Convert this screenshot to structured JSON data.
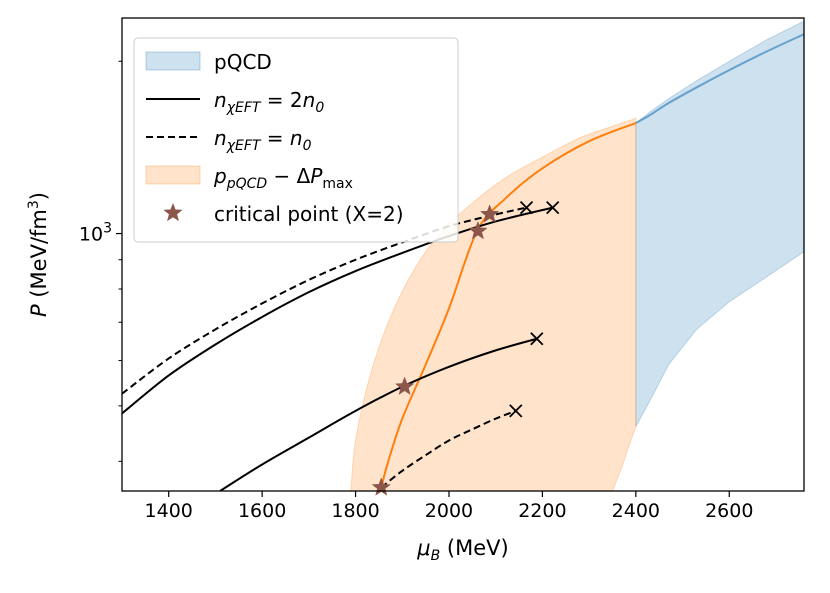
{
  "chart_data": {
    "type": "line",
    "xlabel": "μ_B (MeV)",
    "ylabel": "P (MeV/fm³)",
    "xscale": "linear",
    "yscale": "log",
    "xlim": [
      1300,
      2760
    ],
    "ylim": [
      355,
      2380
    ],
    "x_ticks": [
      1400,
      1600,
      1800,
      2000,
      2200,
      2400,
      2600
    ],
    "y_ticks_major": [
      {
        "value": 1000,
        "label_base": "10",
        "label_exp": "3"
      }
    ],
    "legend": {
      "placement": "top-left",
      "entries": [
        {
          "key": "pqcd",
          "label": "pQCD",
          "style": "band",
          "color": "#1f77b4"
        },
        {
          "key": "n2",
          "label_math": "n",
          "label_sub": "χEFT",
          "label_rest": " = 2",
          "label_math2": "n",
          "label_sub2": "0",
          "style": "solid",
          "color": "#000000"
        },
        {
          "key": "n1",
          "label_math": "n",
          "label_sub": "χEFT",
          "label_rest": " = ",
          "label_math2": "n",
          "label_sub2": "0",
          "style": "dashed",
          "color": "#000000"
        },
        {
          "key": "pmax",
          "label_math": "p",
          "label_sub": "pQCD",
          "label_rest": " − Δ",
          "label_math2": "P",
          "label_sub2": "max",
          "style": "band",
          "color": "#ff7f0e"
        },
        {
          "key": "crit",
          "label": "critical point (X=2)",
          "style": "star",
          "color": "#8c564b"
        }
      ]
    },
    "series": [
      {
        "name": "pQCD band",
        "kind": "band",
        "color": "#1f77b4",
        "x": [
          2400,
          2430,
          2470,
          2530,
          2600,
          2680,
          2760
        ],
        "lower": [
          460,
          510,
          590,
          680,
          760,
          840,
          930
        ],
        "upper": [
          1560,
          1630,
          1720,
          1850,
          2000,
          2180,
          2350
        ],
        "center": [
          1560,
          1610,
          1690,
          1800,
          1930,
          2080,
          2230
        ]
      },
      {
        "name": "p_pQCD − ΔP_max band",
        "kind": "band",
        "color": "#ff7f0e",
        "x": [
          1790,
          1800,
          1830,
          1870,
          1920,
          1980,
          2050,
          2120,
          2200,
          2280,
          2350,
          2400
        ],
        "lower": [
          355,
          355,
          355,
          355,
          355,
          355,
          355,
          355,
          355,
          355,
          355,
          355
        ],
        "upper": [
          355,
          435,
          560,
          700,
          850,
          1000,
          1130,
          1250,
          1360,
          1470,
          1540,
          1590
        ],
        "lower_right_x": [
          2350,
          2370,
          2385,
          2400
        ],
        "lower_right_y": [
          355,
          390,
          425,
          460
        ]
      },
      {
        "name": "critical-point curve",
        "kind": "line",
        "color": "#ff7f0e",
        "x": [
          1855,
          1870,
          1900,
          1950,
          2000,
          2060,
          2120,
          2200,
          2300,
          2400
        ],
        "y": [
          360,
          400,
          475,
          590,
          740,
          1010,
          1150,
          1300,
          1450,
          1560
        ]
      },
      {
        "name": "n = 2n0 upper",
        "kind": "line",
        "style": "solid",
        "color": "#000000",
        "x": [
          1300,
          1400,
          1500,
          1600,
          1700,
          1800,
          1900,
          2000,
          2100,
          2222
        ],
        "y": [
          485,
          565,
          640,
          715,
          790,
          860,
          925,
          990,
          1050,
          1110
        ]
      },
      {
        "name": "n = n0 upper",
        "kind": "line",
        "style": "dashed",
        "color": "#000000",
        "x": [
          1300,
          1400,
          1500,
          1600,
          1700,
          1800,
          1900,
          2000,
          2100,
          2166
        ],
        "y": [
          525,
          605,
          680,
          755,
          830,
          900,
          965,
          1030,
          1080,
          1110
        ]
      },
      {
        "name": "n = 2n0 lower",
        "kind": "line",
        "style": "solid",
        "color": "#000000",
        "x": [
          1510,
          1600,
          1700,
          1800,
          1900,
          2000,
          2100,
          2188
        ],
        "y": [
          355,
          395,
          440,
          490,
          540,
          585,
          625,
          655
        ]
      },
      {
        "name": "n = n0 lower",
        "kind": "line",
        "style": "dashed",
        "color": "#000000",
        "x": [
          1855,
          1900,
          1950,
          2000,
          2050,
          2100,
          2143
        ],
        "y": [
          360,
          385,
          410,
          435,
          455,
          475,
          490
        ]
      }
    ],
    "end_markers": [
      {
        "x": 2222,
        "y": 1110,
        "marker": "x"
      },
      {
        "x": 2166,
        "y": 1110,
        "marker": "x"
      },
      {
        "x": 2188,
        "y": 655,
        "marker": "x"
      },
      {
        "x": 2143,
        "y": 490,
        "marker": "x"
      }
    ],
    "critical_points": [
      {
        "x": 2062,
        "y": 1010
      },
      {
        "x": 2087,
        "y": 1080
      },
      {
        "x": 1905,
        "y": 540
      },
      {
        "x": 1855,
        "y": 360
      }
    ]
  }
}
